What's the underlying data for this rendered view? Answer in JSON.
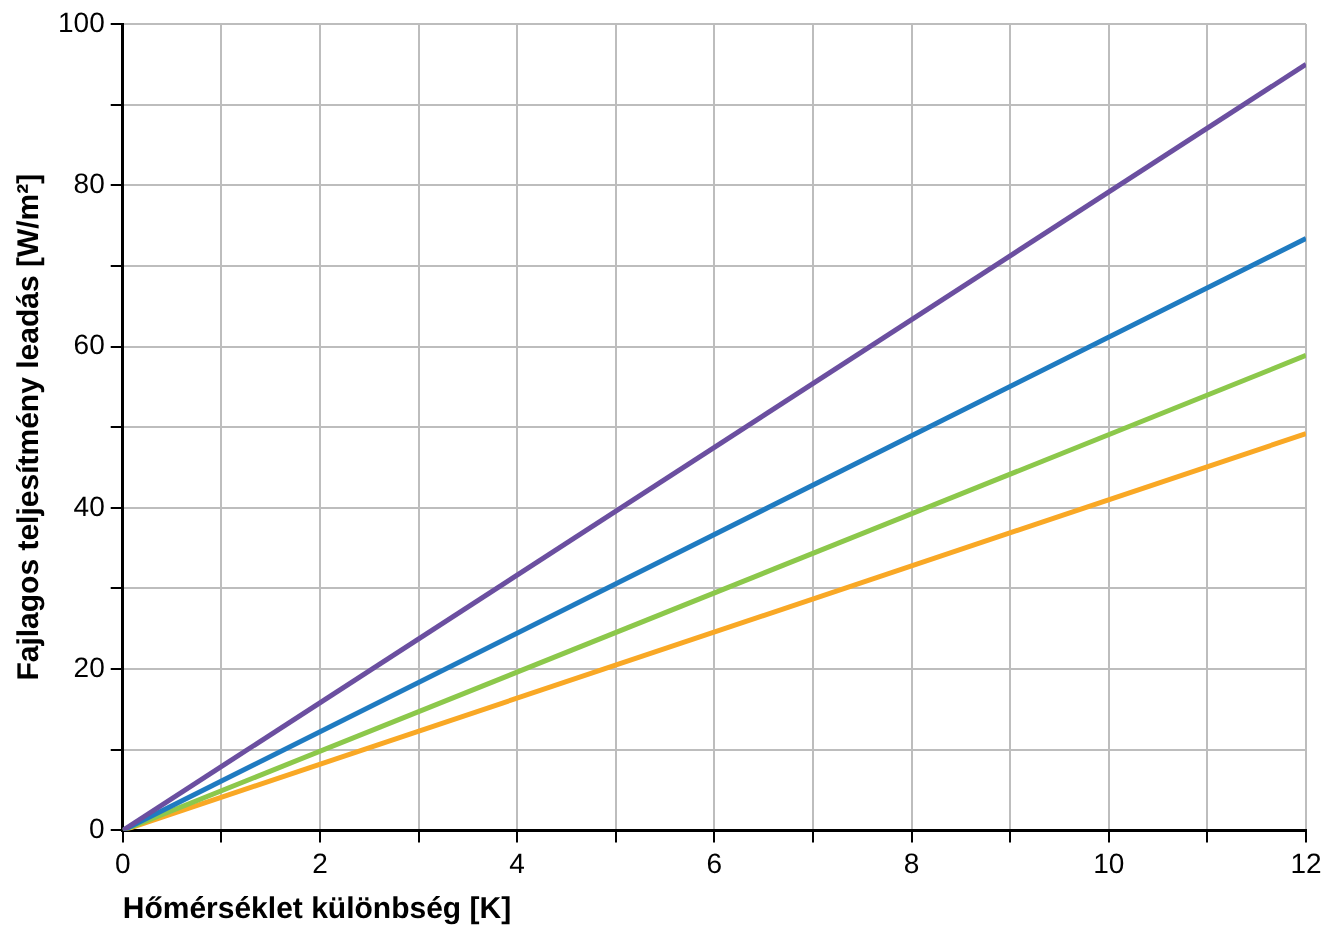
{
  "chart_data": {
    "type": "line",
    "xlabel": "Hőmérséklet különbség [K]",
    "ylabel": "Fajlagos teljesítmény leadás [W/m²]",
    "x": [
      0,
      12
    ],
    "series": [
      {
        "color": "#6b4fa0",
        "values": [
          0,
          95
        ]
      },
      {
        "color": "#1f7bc1",
        "values": [
          0,
          73.4
        ]
      },
      {
        "color": "#8cc84b",
        "values": [
          0,
          58.9
        ]
      },
      {
        "color": "#f9a825",
        "values": [
          0,
          49.2
        ]
      }
    ],
    "xlim": [
      0,
      12
    ],
    "ylim": [
      0,
      100
    ],
    "xticks": [
      0,
      {
        "value": 1,
        "label": null
      },
      2,
      {
        "value": 3,
        "label": null
      },
      4,
      {
        "value": 5,
        "label": null
      },
      6,
      {
        "value": 7,
        "label": null
      },
      8,
      {
        "value": 9,
        "label": null
      },
      10,
      {
        "value": 11,
        "label": null
      },
      12
    ],
    "yticks": [
      0,
      {
        "value": 10,
        "label": null
      },
      20,
      {
        "value": 30,
        "label": null
      },
      40,
      {
        "value": 50,
        "label": null
      },
      60,
      {
        "value": 70,
        "label": null
      },
      80,
      {
        "value": 90,
        "label": null
      },
      100
    ],
    "grid": true,
    "legend": false,
    "marker": "none",
    "line_style": "solid"
  }
}
